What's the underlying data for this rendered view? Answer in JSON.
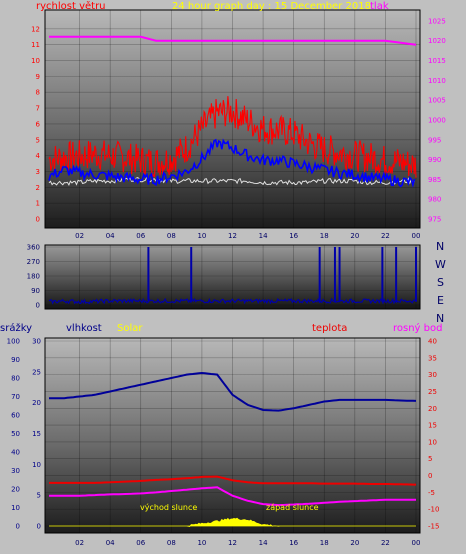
{
  "colors": {
    "background": "#c0c0c0",
    "wind_gust": "#ff0000",
    "wind_avg": "#0000ff",
    "pressure": "#ff00ff",
    "humidity": "#000099",
    "temperature": "#ee0000",
    "dew_point": "#ff00ff",
    "solar": "#ffff00",
    "direction": "#0000aa"
  },
  "header": {
    "wind_label": "rychlost větru",
    "title": "24 hour graph day : 15 December 2018",
    "pressure_label": "tlak"
  },
  "direction_labels": [
    "N",
    "W",
    "S",
    "E",
    "N"
  ],
  "panel3_labels": {
    "rain": "srážky",
    "humidity": "vlhkost",
    "solar": "Solar",
    "temperature": "teplota",
    "dew_point": "rosný bod",
    "sunrise": "východ slunce",
    "sunset": "západ slunce"
  },
  "chart_data": [
    {
      "type": "line",
      "name": "wind and pressure",
      "x_ticks": [
        "02",
        "04",
        "06",
        "08",
        "10",
        "12",
        "14",
        "16",
        "18",
        "20",
        "22",
        "00"
      ],
      "y_left_ticks": [
        "0",
        "1",
        "2",
        "3",
        "4",
        "5",
        "6",
        "7",
        "8",
        "9",
        "10",
        "11",
        "12"
      ],
      "y_left_range": [
        0,
        13
      ],
      "y_right_ticks": [
        "975",
        "980",
        "985",
        "990",
        "995",
        "1000",
        "1005",
        "1010",
        "1015",
        "1020",
        "1025"
      ],
      "y_right_range": [
        975,
        1027
      ],
      "x_hours": [
        0,
        1,
        2,
        3,
        4,
        5,
        6,
        7,
        8,
        9,
        10,
        11,
        12,
        13,
        14,
        15,
        16,
        17,
        18,
        19,
        20,
        21,
        22,
        23,
        24
      ],
      "series": [
        {
          "role": "pressure",
          "axis": "right",
          "values": [
            1021,
            1021,
            1021,
            1021,
            1021,
            1021,
            1021,
            1020,
            1020,
            1020,
            1020,
            1020,
            1020,
            1020,
            1020,
            1020,
            1020,
            1020,
            1020,
            1020,
            1020,
            1020,
            1020,
            1019.5,
            1019
          ]
        },
        {
          "role": "gust",
          "axis": "left",
          "values": [
            3.8,
            3.9,
            4.0,
            4.1,
            4.0,
            3.9,
            3.7,
            3.6,
            3.8,
            4.5,
            5.7,
            6.7,
            6.8,
            6.2,
            5.7,
            5.6,
            5.4,
            4.8,
            4.4,
            4.2,
            4.0,
            3.9,
            3.7,
            3.6,
            3.4
          ]
        },
        {
          "role": "average",
          "axis": "left",
          "values": [
            2.7,
            3.1,
            2.9,
            2.8,
            2.7,
            2.6,
            2.5,
            2.5,
            2.7,
            3.0,
            3.8,
            4.8,
            4.5,
            4.0,
            3.7,
            3.7,
            3.5,
            3.3,
            3.1,
            2.9,
            2.8,
            2.6,
            2.5,
            2.4,
            2.3
          ]
        },
        {
          "role": "calm",
          "axis": "left",
          "values": [
            2.3,
            2.3,
            2.3,
            2.4,
            2.4,
            2.5,
            2.5,
            2.5,
            2.4,
            2.4,
            2.4,
            2.4,
            2.4,
            2.4,
            2.3,
            2.3,
            2.3,
            2.3,
            2.4,
            2.4,
            2.4,
            2.3,
            2.3,
            2.4,
            2.4
          ]
        }
      ]
    },
    {
      "type": "line",
      "name": "wind direction",
      "y_ticks": [
        "0",
        "90",
        "180",
        "270",
        "360"
      ],
      "y_range": [
        0,
        360
      ],
      "x_hours": [
        0,
        1,
        2,
        3,
        4,
        5,
        6,
        7,
        8,
        9,
        10,
        11,
        12,
        13,
        14,
        15,
        16,
        17,
        18,
        19,
        20,
        21,
        22,
        23,
        24
      ],
      "values": [
        20,
        25,
        20,
        22,
        25,
        25,
        25,
        25,
        25,
        25,
        25,
        25,
        25,
        25,
        25,
        25,
        25,
        25,
        25,
        25,
        25,
        25,
        25,
        25,
        25
      ],
      "spikes_at_hours": [
        6.5,
        9.3,
        17.7,
        18.7,
        19.0,
        21.8,
        22.7,
        24.0
      ],
      "spike_value": 360
    },
    {
      "type": "line",
      "name": "rain humidity temperature dew point solar",
      "x_ticks": [
        "02",
        "04",
        "06",
        "08",
        "10",
        "12",
        "14",
        "16",
        "18",
        "20",
        "22",
        "00"
      ],
      "y_rain_ticks": [
        "0",
        "10",
        "20",
        "30",
        "40",
        "50",
        "60",
        "70",
        "80",
        "90",
        "100"
      ],
      "y_humidity_ticks": [
        "0",
        "5",
        "10",
        "15",
        "20",
        "25",
        "30"
      ],
      "y_temp_ticks": [
        "-15",
        "-10",
        "-5",
        "0",
        "5",
        "10",
        "15",
        "20",
        "25",
        "30",
        "35",
        "40"
      ],
      "y_temp_range": [
        -15,
        40
      ],
      "x_hours": [
        0,
        1,
        2,
        3,
        4,
        5,
        6,
        7,
        8,
        9,
        10,
        11,
        12,
        13,
        14,
        15,
        16,
        17,
        18,
        19,
        20,
        21,
        22,
        23,
        24
      ],
      "series": [
        {
          "role": "humidity",
          "axis": "temp",
          "values": [
            23,
            23,
            23.5,
            24,
            25,
            26,
            27,
            28,
            29,
            30,
            30.5,
            30,
            24,
            21,
            19.5,
            19.3,
            20,
            21,
            22,
            22.5,
            22.5,
            22.5,
            22.5,
            22.3,
            22.2
          ]
        },
        {
          "role": "temperature",
          "axis": "temp",
          "values": [
            -2.2,
            -2.2,
            -2.2,
            -2.2,
            -2.0,
            -1.8,
            -1.6,
            -1.3,
            -1.1,
            -0.8,
            -0.4,
            -0.3,
            -1.4,
            -2.0,
            -2.3,
            -2.3,
            -2.3,
            -2.3,
            -2.4,
            -2.4,
            -2.4,
            -2.5,
            -2.5,
            -2.6,
            -2.7
          ]
        },
        {
          "role": "dew_point",
          "axis": "temp",
          "values": [
            -6.0,
            -6.0,
            -6.0,
            -5.8,
            -5.6,
            -5.5,
            -5.3,
            -5.0,
            -4.6,
            -4.2,
            -3.8,
            -3.5,
            -6.0,
            -7.5,
            -8.5,
            -8.8,
            -8.6,
            -8.4,
            -8.1,
            -7.8,
            -7.6,
            -7.4,
            -7.2,
            -7.2,
            -7.2
          ]
        },
        {
          "role": "solar",
          "axis": "temp",
          "values": [
            -15,
            -15,
            -15,
            -15,
            -15,
            -15,
            -15,
            -15,
            -15,
            -15,
            -14.3,
            -13.6,
            -12.8,
            -13.2,
            -14.6,
            -15,
            -15,
            -15,
            -15,
            -15,
            -15,
            -15,
            -15,
            -15,
            -15
          ]
        }
      ]
    }
  ]
}
